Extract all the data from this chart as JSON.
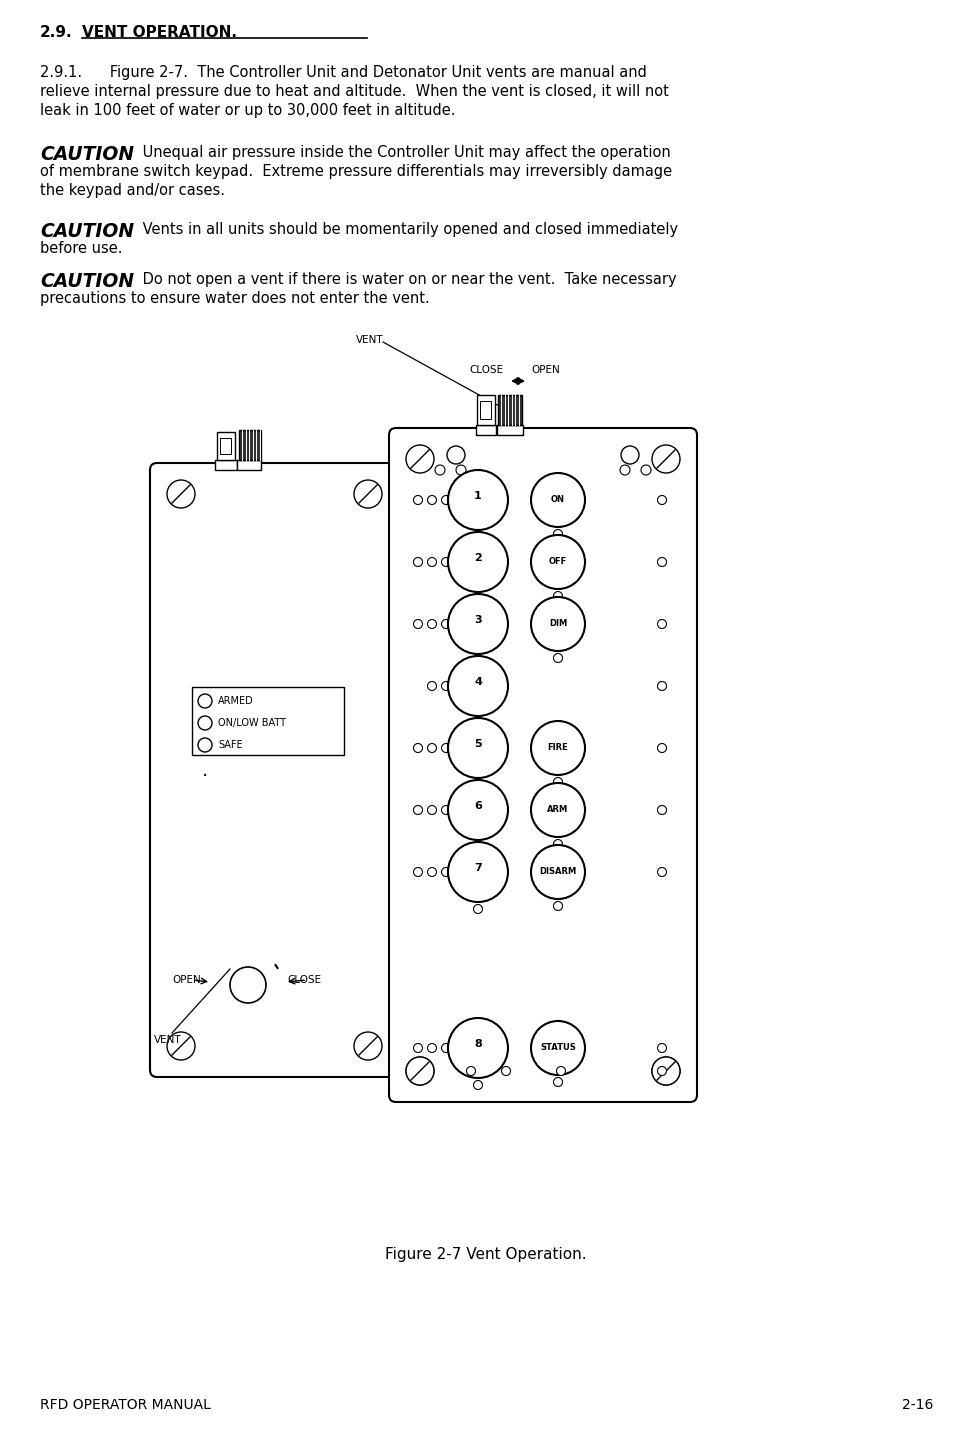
{
  "bg_color": "#ffffff",
  "fig_caption": "Figure 2-7 Vent Operation.",
  "footer_left": "RFD OPERATOR MANUAL",
  "footer_right": "2-16",
  "heading_text": "2.9.",
  "heading_underlined": "VENT OPERATION.",
  "para_291_line1": "2.9.1.      Figure 2-7.  The Controller Unit and Detonator Unit vents are manual and",
  "para_291_line2": "relieve internal pressure due to heat and altitude.  When the vent is closed, it will not",
  "para_291_line3": "leak in 100 feet of water or up to 30,000 feet in altitude.",
  "c1_norm_line1": " Unequal air pressure inside the Controller Unit may affect the operation",
  "c1_norm_line2": "of membrane switch keypad.  Extreme pressure differentials may irreversibly damage",
  "c1_norm_line3": "the keypad and/or cases.",
  "c2_norm_line1": " Vents in all units should be momentarily opened and closed immediately",
  "c2_norm_line2": "before use.",
  "c3_norm_line1": " Do not open a vent if there is water on or near the vent.  Take necessary",
  "c3_norm_line2": "precautions to ensure water does not enter the vent.",
  "button_nums": [
    "1",
    "2",
    "3",
    "4",
    "5",
    "6",
    "7",
    "8"
  ],
  "button_labels": [
    "ON",
    "OFF",
    "DIM",
    "",
    "FIRE",
    "ARM",
    "DISARM",
    "STATUS"
  ],
  "led_labels": [
    "ARMED",
    "ON/LOW BATT",
    "SAFE"
  ]
}
